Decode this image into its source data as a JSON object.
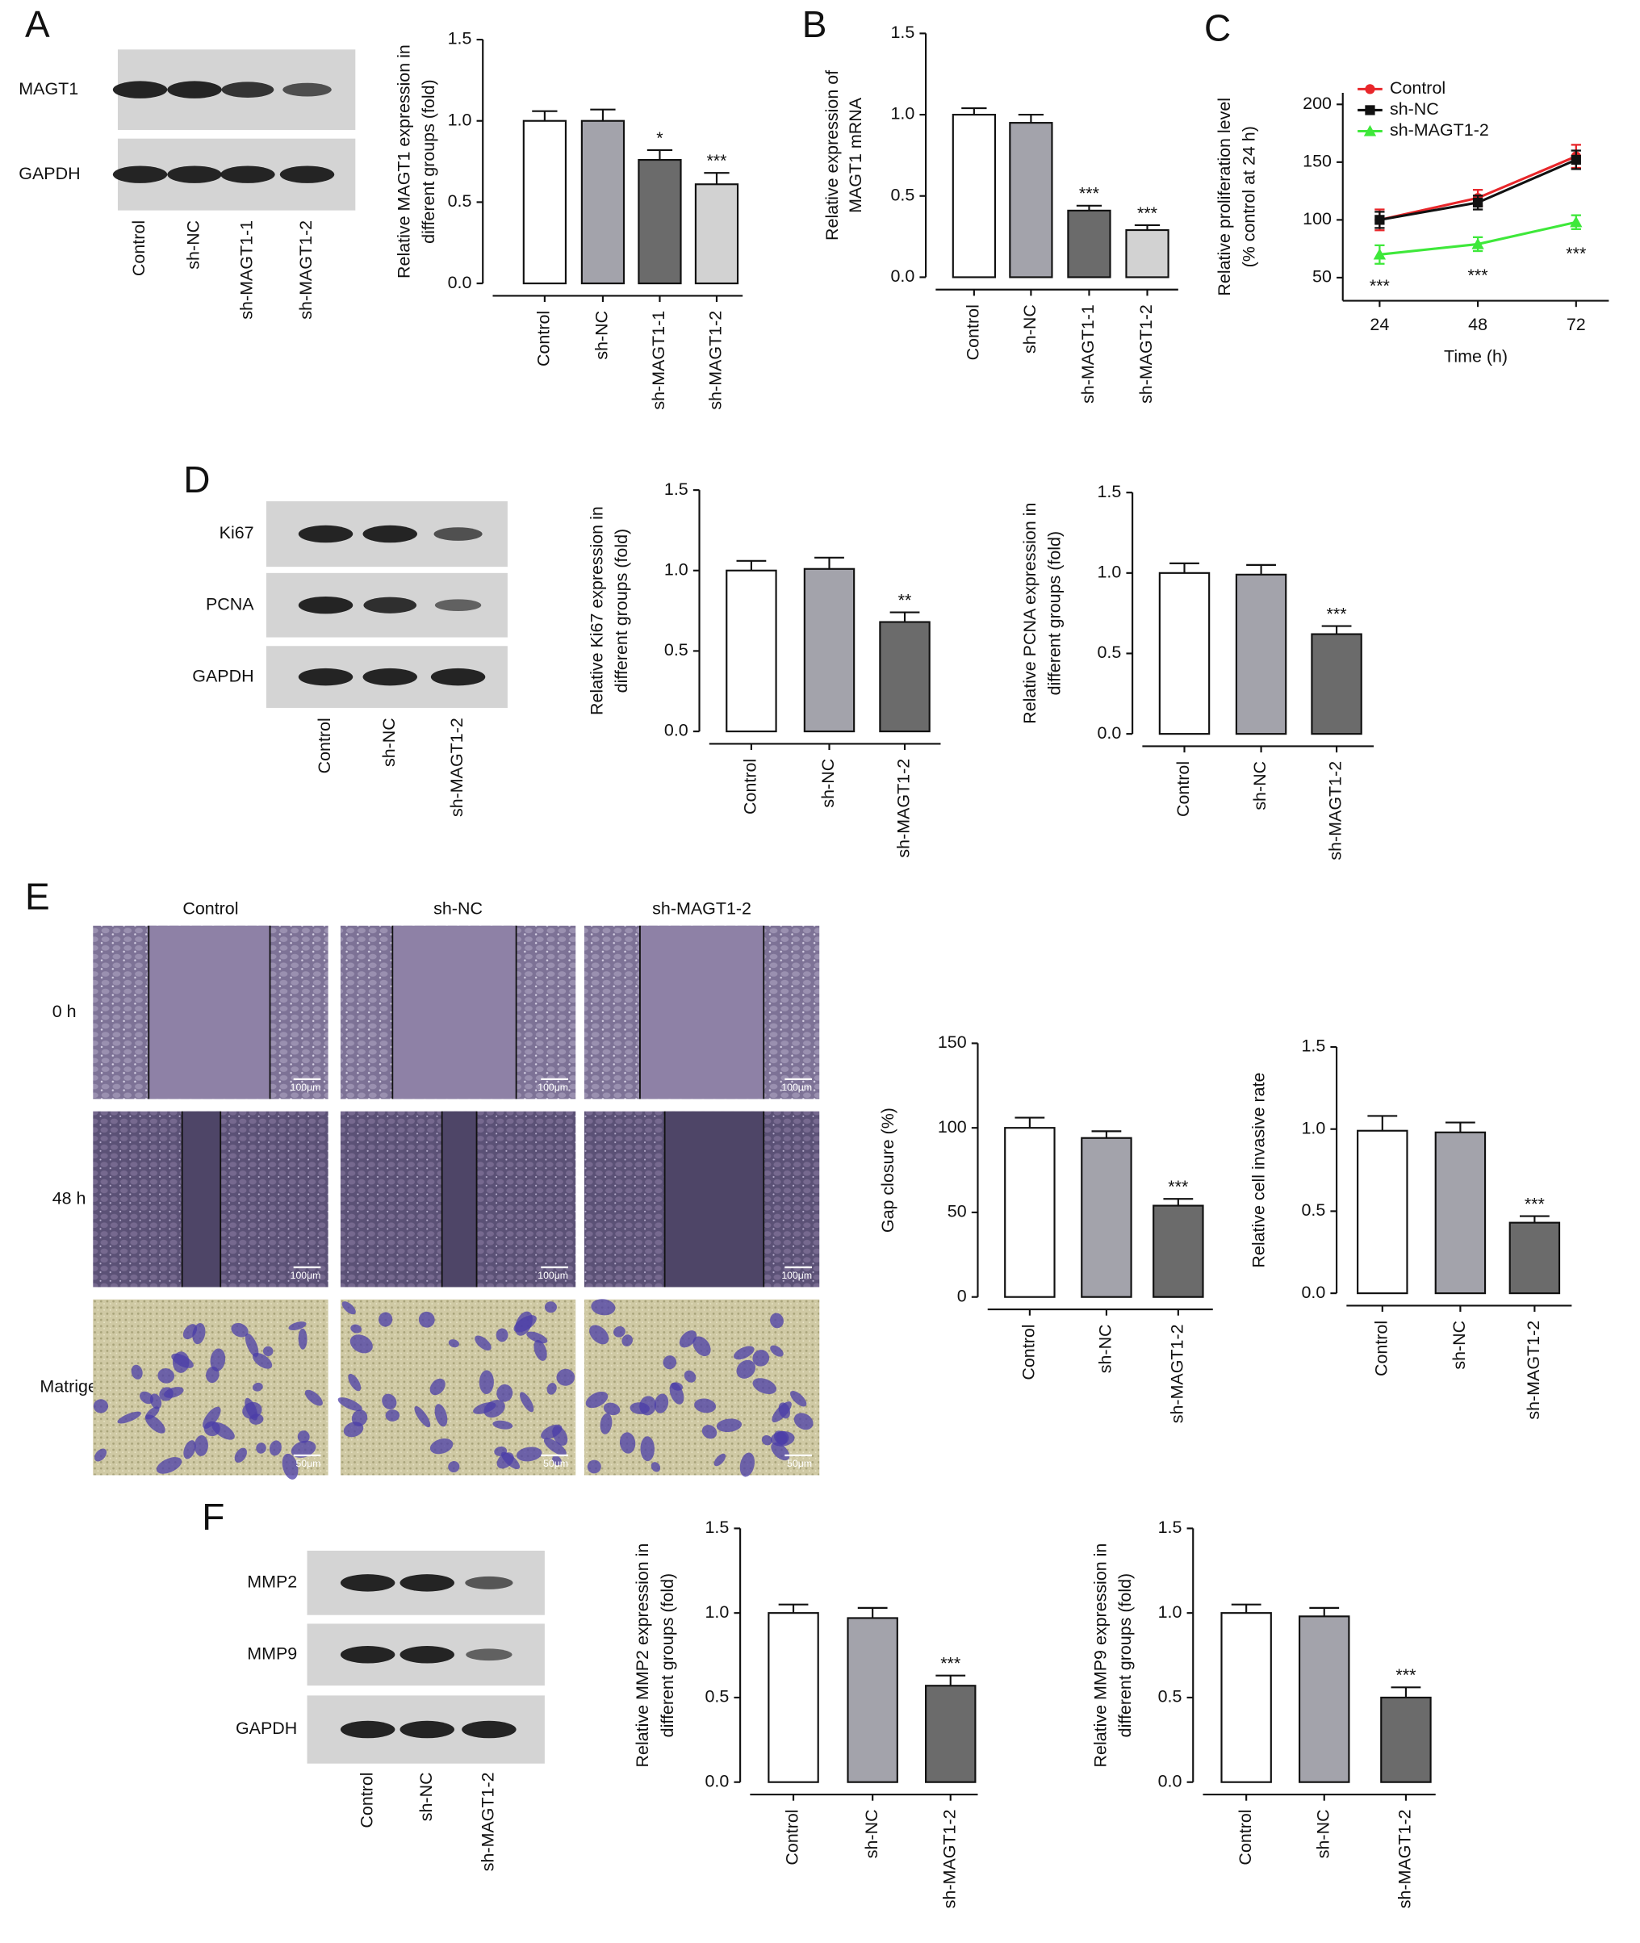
{
  "panel_labels": [
    "A",
    "B",
    "C",
    "D",
    "E",
    "F"
  ],
  "blots": [
    {
      "rows": [
        "MAGT1",
        "GAPDH"
      ],
      "lanes": [
        "Control",
        "sh-NC",
        "sh-MAGT1-1",
        "sh-MAGT1-2"
      ]
    },
    {
      "rows": [
        "Ki67",
        "PCNA",
        "GAPDH"
      ],
      "lanes": [
        "Control",
        "sh-NC",
        "sh-MAGT1-2"
      ]
    },
    {
      "rows": [
        "MMP2",
        "MMP9",
        "GAPDH"
      ],
      "lanes": [
        "Control",
        "sh-NC",
        "sh-MAGT1-2"
      ]
    }
  ],
  "micrographs": {
    "columns": [
      "Control",
      "sh-NC",
      "sh-MAGT1-2"
    ],
    "rows": [
      "0 h",
      "48 h",
      "Matrigel"
    ],
    "scale_bars": [
      "100μm",
      "100μm",
      "50μm"
    ]
  },
  "chart_data": [
    {
      "type": "bar",
      "ylabel": [
        "Relative MAGT1 expression in",
        "different groups (fold)"
      ],
      "categories": [
        "Control",
        "sh-NC",
        "sh-MAGT1-1",
        "sh-MAGT1-2"
      ],
      "values": [
        1.0,
        1.0,
        0.76,
        0.61
      ],
      "errors": [
        0.06,
        0.07,
        0.06,
        0.07
      ],
      "colors": [
        "#ffffff",
        "#a3a3ab",
        "#6b6b6b",
        "#d2d2d2"
      ],
      "annotations": [
        null,
        null,
        "*",
        "***"
      ],
      "ylim": [
        0,
        1.5
      ],
      "yticks": [
        {
          "value": 0,
          "label": "0.0"
        },
        0.5,
        {
          "value": 1,
          "label": "1.0"
        },
        1.5
      ]
    },
    {
      "type": "bar",
      "ylabel": [
        "Relative expression of",
        "MAGT1 mRNA"
      ],
      "categories": [
        "Control",
        "sh-NC",
        "sh-MAGT1-1",
        "sh-MAGT1-2"
      ],
      "values": [
        1.0,
        0.95,
        0.41,
        0.29
      ],
      "errors": [
        0.04,
        0.05,
        0.03,
        0.03
      ],
      "colors": [
        "#ffffff",
        "#a3a3ab",
        "#6b6b6b",
        "#d2d2d2"
      ],
      "annotations": [
        null,
        null,
        "***",
        "***"
      ],
      "ylim": [
        0,
        1.5
      ],
      "yticks": [
        {
          "value": 0,
          "label": "0.0"
        },
        0.5,
        {
          "value": 1,
          "label": "1.0"
        },
        1.5
      ]
    },
    {
      "type": "line",
      "ylabel": [
        "Relative proliferation level",
        "(% control at 24 h)"
      ],
      "xlabel": "Time (h)",
      "x": [
        24,
        48,
        72
      ],
      "xlim": [
        15,
        80
      ],
      "xticks": [
        24,
        48,
        72
      ],
      "ylim": [
        30,
        210
      ],
      "yticks": [
        50,
        100,
        150,
        200
      ],
      "series": [
        {
          "name": "Control",
          "color": "#e8262a",
          "values": [
            100,
            119,
            155
          ],
          "errors": [
            9,
            7,
            10
          ]
        },
        {
          "name": "sh-NC",
          "color": "#111111",
          "values": [
            100,
            115,
            152
          ],
          "errors": [
            7,
            6,
            8
          ]
        },
        {
          "name": "sh-MAGT1-2",
          "color": "#3ee83a",
          "values": [
            70,
            79,
            98
          ],
          "errors": [
            8,
            6,
            6
          ]
        }
      ],
      "annotations": [
        "***",
        "***",
        "***"
      ],
      "legend": "upper left"
    },
    {
      "type": "bar",
      "ylabel": [
        "Relative Ki67 expression in",
        "different groups (fold)"
      ],
      "categories": [
        "Control",
        "sh-NC",
        "sh-MAGT1-2"
      ],
      "values": [
        1.0,
        1.01,
        0.68
      ],
      "errors": [
        0.06,
        0.07,
        0.06
      ],
      "colors": [
        "#ffffff",
        "#a3a3ab",
        "#6b6b6b"
      ],
      "annotations": [
        null,
        null,
        "**"
      ],
      "ylim": [
        0,
        1.5
      ],
      "yticks": [
        {
          "value": 0,
          "label": "0.0"
        },
        0.5,
        {
          "value": 1,
          "label": "1.0"
        },
        1.5
      ]
    },
    {
      "type": "bar",
      "ylabel": [
        "Relative PCNA expression in",
        "different groups (fold)"
      ],
      "categories": [
        "Control",
        "sh-NC",
        "sh-MAGT1-2"
      ],
      "values": [
        1.0,
        0.99,
        0.62
      ],
      "errors": [
        0.06,
        0.06,
        0.05
      ],
      "colors": [
        "#ffffff",
        "#a3a3ab",
        "#6b6b6b"
      ],
      "annotations": [
        null,
        null,
        "***"
      ],
      "ylim": [
        0,
        1.5
      ],
      "yticks": [
        {
          "value": 0,
          "label": "0.0"
        },
        0.5,
        {
          "value": 1,
          "label": "1.0"
        },
        1.5
      ]
    },
    {
      "type": "bar",
      "ylabel": [
        "Gap closure (%)"
      ],
      "categories": [
        "Control",
        "sh-NC",
        "sh-MAGT1-2"
      ],
      "values": [
        100,
        94,
        54
      ],
      "errors": [
        6,
        4,
        4
      ],
      "colors": [
        "#ffffff",
        "#a3a3ab",
        "#6b6b6b"
      ],
      "annotations": [
        null,
        null,
        "***"
      ],
      "ylim": [
        0,
        150
      ],
      "yticks": [
        0,
        50,
        100,
        150
      ]
    },
    {
      "type": "bar",
      "ylabel": [
        "Relative cell invasive rate"
      ],
      "categories": [
        "Control",
        "sh-NC",
        "sh-MAGT1-2"
      ],
      "values": [
        0.99,
        0.98,
        0.43
      ],
      "errors": [
        0.09,
        0.06,
        0.04
      ],
      "colors": [
        "#ffffff",
        "#a3a3ab",
        "#6b6b6b"
      ],
      "annotations": [
        null,
        null,
        "***"
      ],
      "ylim": [
        0,
        1.5
      ],
      "yticks": [
        {
          "value": 0,
          "label": "0.0"
        },
        0.5,
        {
          "value": 1,
          "label": "1.0"
        },
        1.5
      ]
    },
    {
      "type": "bar",
      "ylabel": [
        "Relative MMP2 expression in",
        "different groups (fold)"
      ],
      "categories": [
        "Control",
        "sh-NC",
        "sh-MAGT1-2"
      ],
      "values": [
        1.0,
        0.97,
        0.57
      ],
      "errors": [
        0.05,
        0.06,
        0.06
      ],
      "colors": [
        "#ffffff",
        "#a3a3ab",
        "#6b6b6b"
      ],
      "annotations": [
        null,
        null,
        "***"
      ],
      "ylim": [
        0,
        1.5
      ],
      "yticks": [
        {
          "value": 0,
          "label": "0.0"
        },
        0.5,
        {
          "value": 1,
          "label": "1.0"
        },
        1.5
      ]
    },
    {
      "type": "bar",
      "ylabel": [
        "Relative MMP9 expression in",
        "different groups (fold)"
      ],
      "categories": [
        "Control",
        "sh-NC",
        "sh-MAGT1-2"
      ],
      "values": [
        1.0,
        0.98,
        0.5
      ],
      "errors": [
        0.05,
        0.05,
        0.06
      ],
      "colors": [
        "#ffffff",
        "#a3a3ab",
        "#6b6b6b"
      ],
      "annotations": [
        null,
        null,
        "***"
      ],
      "ylim": [
        0,
        1.5
      ],
      "yticks": [
        {
          "value": 0,
          "label": "0.0"
        },
        0.5,
        {
          "value": 1,
          "label": "1.0"
        },
        1.5
      ]
    }
  ]
}
